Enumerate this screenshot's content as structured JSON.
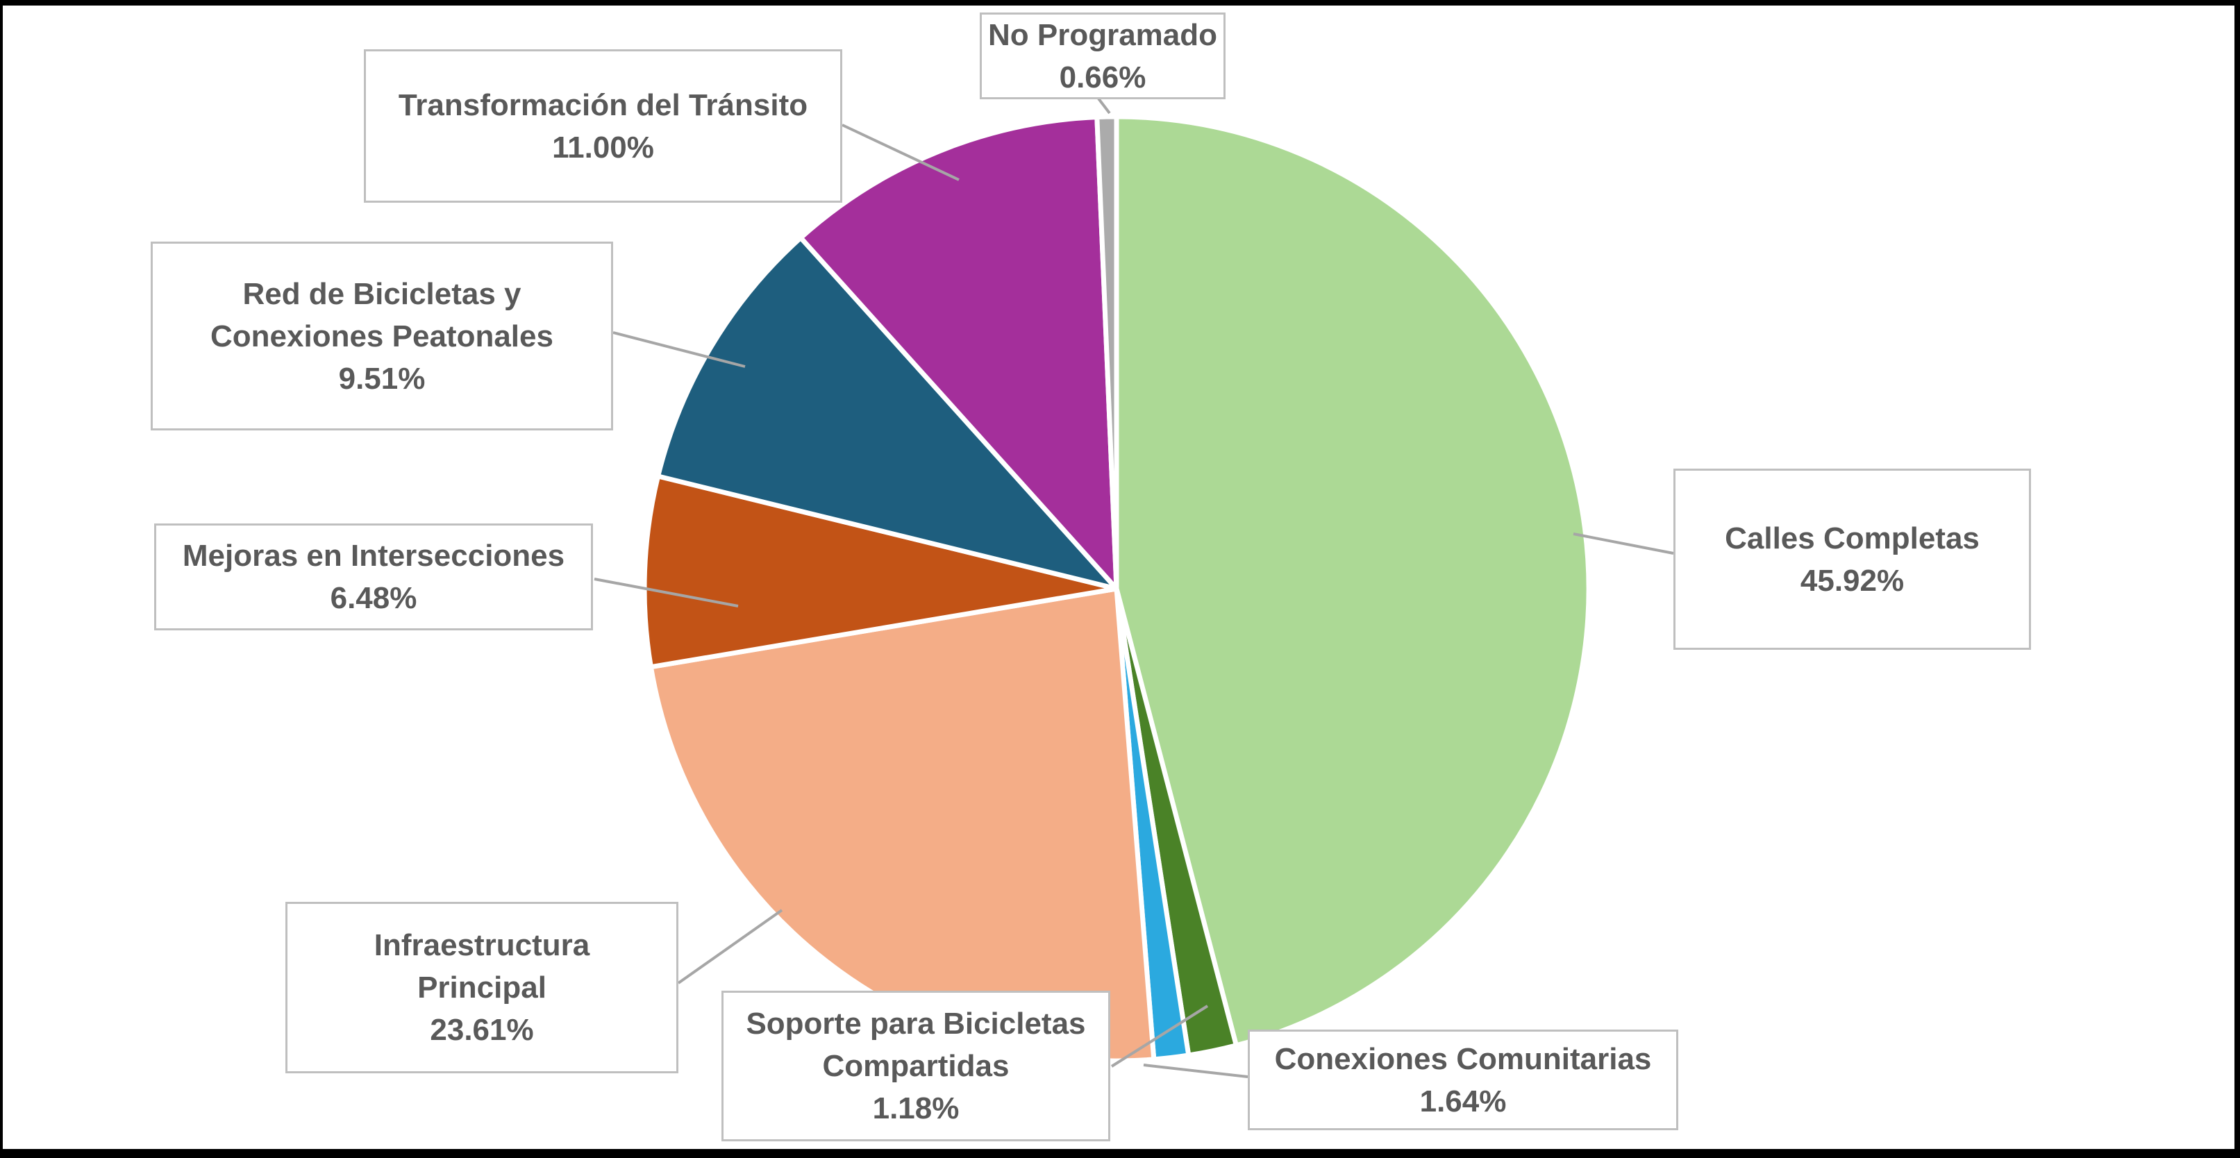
{
  "chart_data": {
    "type": "pie",
    "title": "",
    "unit": "%",
    "start_angle_deg": 0,
    "direction": "clockwise",
    "legend": "callout labels with leader lines",
    "slices": [
      {
        "label_lines": [
          "Calles Completas"
        ],
        "pct": "45.92%",
        "value": 45.92,
        "color": "#ACD995"
      },
      {
        "label_lines": [
          "Conexiones Comunitarias"
        ],
        "pct": "1.64%",
        "value": 1.64,
        "color": "#4A8227"
      },
      {
        "label_lines": [
          "Soporte para Bicicletas",
          "Compartidas"
        ],
        "pct": "1.18%",
        "value": 1.18,
        "color": "#2BA9DF"
      },
      {
        "label_lines": [
          "Infraestructura",
          "Principal"
        ],
        "pct": "23.61%",
        "value": 23.61,
        "color": "#F4AD87"
      },
      {
        "label_lines": [
          "Mejoras en Intersecciones"
        ],
        "pct": "6.48%",
        "value": 6.48,
        "color": "#C25316"
      },
      {
        "label_lines": [
          "Red de Bicicletas y",
          "Conexiones Peatonales"
        ],
        "pct": "9.51%",
        "value": 9.51,
        "color": "#1E5E7E"
      },
      {
        "label_lines": [
          "Transformación del Tránsito"
        ],
        "pct": "11.00%",
        "value": 11.0,
        "color": "#A42F9B"
      },
      {
        "label_lines": [
          "No Programado"
        ],
        "pct": "0.66%",
        "value": 0.66,
        "color": "#ABABAB"
      }
    ]
  },
  "style": {
    "background": "#FFFFFF",
    "frame_color": "#000000",
    "label_text_color": "#595959",
    "box_border_color": "#BFBFBF",
    "box_fill": "#FFFFFF",
    "leader_line_color": "#A6A6A6",
    "slice_gap_color": "#FFFFFF"
  }
}
